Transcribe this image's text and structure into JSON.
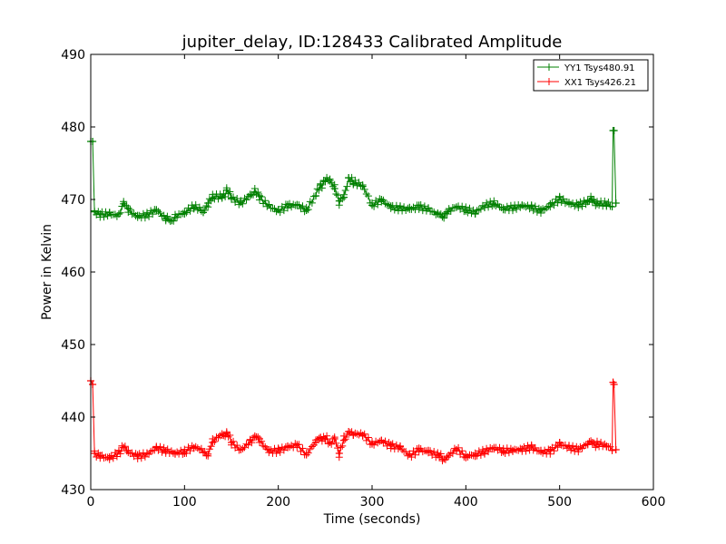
{
  "chart_data": {
    "type": "line",
    "title": "jupiter_delay, ID:128433 Calibrated Amplitude",
    "xlabel": "Time (seconds)",
    "ylabel": "Power in Kelvin",
    "xlim": [
      0,
      600
    ],
    "ylim": [
      430,
      490
    ],
    "x_ticks": [
      "0",
      "100",
      "200",
      "300",
      "400",
      "500",
      "600"
    ],
    "y_ticks": [
      "430",
      "440",
      "450",
      "460",
      "470",
      "480",
      "490"
    ],
    "grid": false,
    "legend_position": "top-right",
    "marker": "plus",
    "series": [
      {
        "name": "YY1 Tsys480.91",
        "color": "#008000",
        "x": [
          0,
          2,
          4,
          10,
          20,
          30,
          35,
          40,
          50,
          60,
          70,
          80,
          85,
          90,
          100,
          110,
          120,
          125,
          130,
          140,
          145,
          150,
          160,
          170,
          175,
          180,
          190,
          200,
          210,
          220,
          230,
          240,
          245,
          250,
          255,
          260,
          265,
          270,
          275,
          280,
          290,
          300,
          310,
          320,
          330,
          340,
          350,
          360,
          370,
          375,
          380,
          390,
          400,
          410,
          420,
          430,
          440,
          450,
          460,
          470,
          480,
          490,
          500,
          510,
          520,
          530,
          535,
          540,
          550,
          556,
          557,
          558,
          560
        ],
        "y": [
          478,
          478,
          468.3,
          468.0,
          468.2,
          468.0,
          469.4,
          468.8,
          467.8,
          468.0,
          468.6,
          467.3,
          467.1,
          467.5,
          468.0,
          468.8,
          468.2,
          469.5,
          470.2,
          470.3,
          471.3,
          470.2,
          469.6,
          470.7,
          471.0,
          470.5,
          469.3,
          468.6,
          469.3,
          469.3,
          468.5,
          470.5,
          472.0,
          472.5,
          472.8,
          471.5,
          469.8,
          470.3,
          473.0,
          472.2,
          471.8,
          469.2,
          470.0,
          469.1,
          469.0,
          468.9,
          469.2,
          468.8,
          468.0,
          467.6,
          468.3,
          468.9,
          468.4,
          468.0,
          468.9,
          469.3,
          468.6,
          468.8,
          469.2,
          469.1,
          468.6,
          469.4,
          470.3,
          469.6,
          469.3,
          469.7,
          470.0,
          469.4,
          469.2,
          469.0,
          479.5,
          479.5,
          469.5
        ]
      },
      {
        "name": "XX1 Tsys426.21",
        "color": "#ff0000",
        "x": [
          0,
          2,
          4,
          10,
          20,
          30,
          35,
          40,
          50,
          60,
          70,
          80,
          90,
          100,
          110,
          120,
          125,
          130,
          140,
          145,
          150,
          160,
          170,
          175,
          180,
          190,
          200,
          210,
          220,
          230,
          240,
          245,
          250,
          255,
          260,
          265,
          270,
          275,
          280,
          290,
          300,
          310,
          320,
          330,
          340,
          350,
          360,
          370,
          375,
          380,
          390,
          400,
          410,
          420,
          430,
          440,
          450,
          460,
          470,
          480,
          490,
          500,
          510,
          520,
          530,
          535,
          540,
          550,
          556,
          557,
          558,
          560
        ],
        "y": [
          445,
          444.5,
          435.0,
          434.7,
          434.5,
          435.3,
          435.8,
          435.4,
          434.8,
          435.0,
          435.8,
          435.3,
          434.9,
          435.0,
          435.7,
          435.1,
          434.9,
          436.5,
          437.5,
          437.8,
          436.5,
          435.5,
          436.8,
          437.2,
          437.0,
          435.5,
          435.6,
          436.0,
          436.2,
          434.8,
          436.5,
          437.2,
          437.0,
          436.5,
          437.0,
          435.0,
          436.8,
          438.0,
          437.5,
          437.5,
          436.3,
          436.8,
          436.2,
          436.0,
          434.9,
          435.7,
          435.4,
          434.8,
          434.2,
          434.5,
          435.5,
          434.4,
          434.6,
          435.0,
          435.6,
          435.2,
          435.4,
          435.6,
          436.0,
          435.4,
          435.5,
          436.5,
          436.0,
          435.6,
          436.3,
          436.5,
          436.2,
          435.9,
          435.4,
          444.8,
          444.5,
          435.5
        ]
      }
    ]
  }
}
